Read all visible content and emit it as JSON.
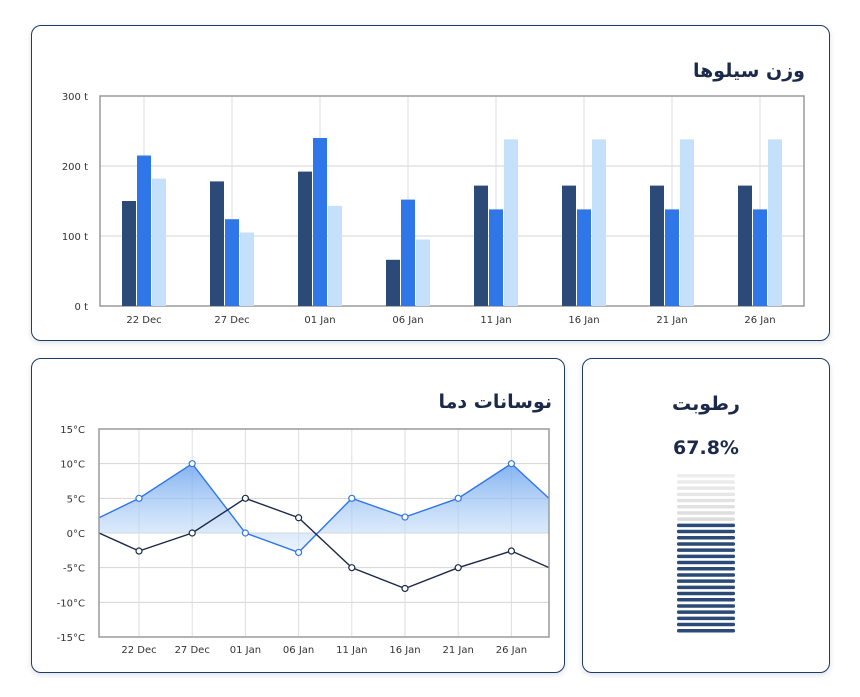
{
  "silo_card": {
    "title": "وزن سیلوها"
  },
  "temp_card": {
    "title": "نوسانات دما"
  },
  "humidity_card": {
    "title": "رطوبت",
    "value_label": "67.8%",
    "value": 67.8
  },
  "colors": {
    "dark_blue": "#2b4a77",
    "blue": "#2f76e8",
    "light_blue": "#c4e0fb",
    "border": "#1f3b66"
  },
  "chart_data": [
    {
      "type": "bar",
      "categories": [
        "22 Dec",
        "27 Dec",
        "01 Jan",
        "06 Jan",
        "11 Jan",
        "16 Jan",
        "21 Jan",
        "26 Jan"
      ],
      "y_tick_labels": [
        "0 t",
        "100 t",
        "200 t",
        "300 t"
      ],
      "ylim": [
        0,
        300
      ],
      "grid": true,
      "series": [
        {
          "color": "#2b4a77",
          "values": [
            150,
            178,
            192,
            66,
            172,
            172,
            172,
            172
          ]
        },
        {
          "color": "#2f76e8",
          "values": [
            215,
            124,
            240,
            152,
            138,
            138,
            138,
            138
          ]
        },
        {
          "color": "#c4e0fb",
          "values": [
            182,
            105,
            143,
            95,
            238,
            238,
            238,
            238
          ]
        }
      ]
    },
    {
      "type": "line",
      "categories": [
        "22 Dec",
        "27 Dec",
        "01 Jan",
        "06 Jan",
        "11 Jan",
        "16 Jan",
        "21 Jan",
        "26 Jan"
      ],
      "y_tick_labels": [
        "15°C",
        "10°C",
        "5°C",
        "0°C",
        "-5°C",
        "-10°C",
        "-15°C"
      ],
      "ylim": [
        -15,
        15
      ],
      "grid": true,
      "series": [
        {
          "color": "#2f76e8",
          "area": true,
          "values": [
            5,
            10,
            0,
            -2.8,
            5,
            2.3,
            5,
            10
          ],
          "start": 2.2,
          "end": 5
        },
        {
          "color": "#1c2a4a",
          "area": false,
          "values": [
            -2.6,
            0,
            5,
            2.2,
            -5,
            -8,
            -5,
            -2.6
          ],
          "start": 0,
          "end": -5
        }
      ]
    }
  ]
}
